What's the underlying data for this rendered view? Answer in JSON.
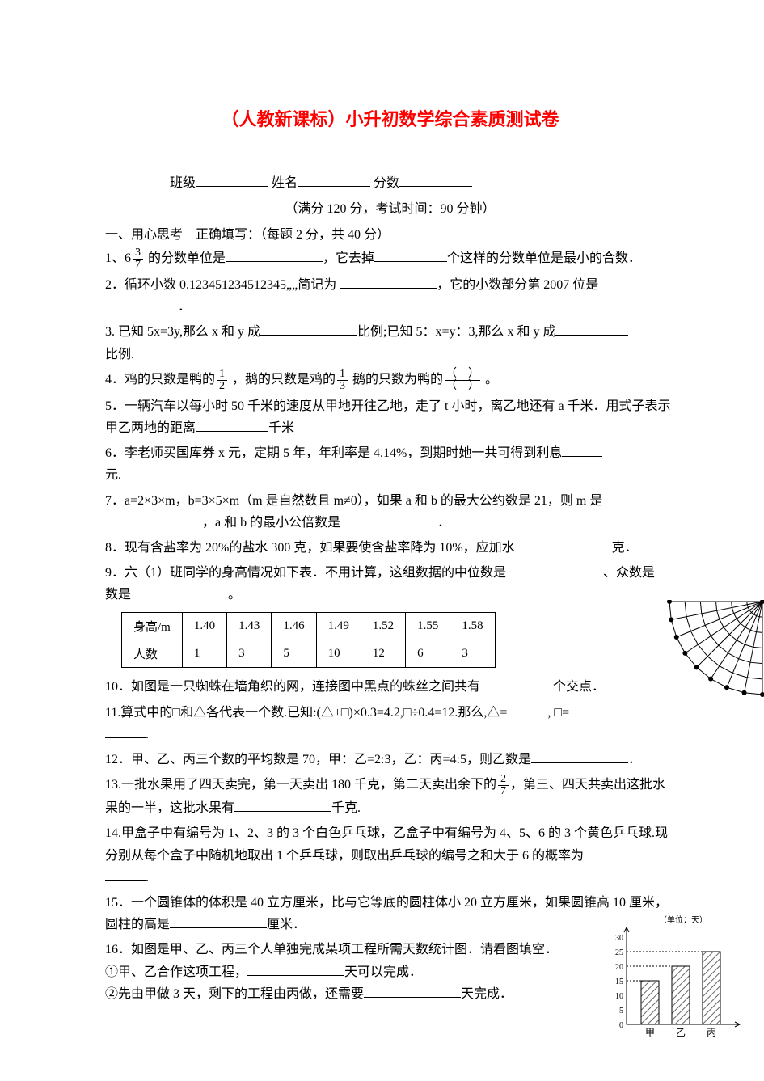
{
  "title": "（人教新课标）小升初数学综合素质测试卷",
  "header": {
    "class_label": "班级",
    "name_label": "姓名",
    "score_label": "分数"
  },
  "subtitle": "（满分 120 分，考试时间：90 分钟）",
  "section1": "一、用心思考　正确填写：（每题 2 分，共 40 分）",
  "q1_a": "1、6",
  "q1_frac_num": "3",
  "q1_frac_den": "7",
  "q1_b": " 的分数单位是",
  "q1_c": "，它去掉",
  "q1_d": "个这样的分数单位是最小的合数．",
  "q2_a": "2．循环小数 0.123451234512345„„简记为 ",
  "q2_b": "，它的小数部分第 2007 位是",
  "q2_c": "．",
  "q3_a": "3. 已知 5x=3y,那么 x 和 y 成",
  "q3_b": "比例;已知 5：x=y：3,那么 x 和 y 成",
  "q3_c": "比例.",
  "q4_a": "4．鸡的只数是鸭的",
  "q4_f1_num": "1",
  "q4_f1_den": "2",
  "q4_b": " ，鹅的只数是鸡的",
  "q4_f2_num": "1",
  "q4_f2_den": "3",
  "q4_c": " 鹅的只数为鸭的",
  "q4_f3_num": "（　）",
  "q4_f3_den": "（　）",
  "q4_d": " 。",
  "q5_a": "5．一辆汽车以每小时 50 千米的速度从甲地开往乙地，走了 t 小时，离乙地还有 a 千米．用式子表示甲乙两地的距离",
  "q5_b": "千米",
  "q6_a": "6．李老师买国库券 x 元，定期 5 年，年利率是 4.14%，到期时她一共可得到利息",
  "q6_b": "元.",
  "q7_a": "7．a=2×3×m，b=3×5×m（m 是自然数且 m≠0），如果 a 和 b 的最大公约数是 21，则 m 是",
  "q7_b": "，a 和 b 的最小公倍数是",
  "q7_c": "．",
  "q8_a": "8．现有含盐率为 20%的盐水 300 克，如果要使含盐率降为 10%，应加水",
  "q8_b": "克．",
  "q9_a": "9．六（1）班同学的身高情况如下表．不用计算，这组数据的中位数是",
  "q9_b": "、众数是",
  "q9_c": "。",
  "table": {
    "headers": [
      "身高/m",
      "1.40",
      "1.43",
      "1.46",
      "1.49",
      "1.52",
      "1.55",
      "1.58"
    ],
    "row2_label": "人数",
    "row2": [
      "1",
      "3",
      "5",
      "10",
      "12",
      "6",
      "3"
    ]
  },
  "q10_a": "10．如图是一只蜘蛛在墙角织的网，连接图中黑点的蛛丝之间共有",
  "q10_b": "个交点．",
  "q11_a": "11.算式中的□和△各代表一个数.已知:(△+□)×0.3=4.2,□÷0.4=12.那么,△=",
  "q11_b": ", □=",
  "q11_c": ".",
  "q12_a": "12．甲、乙、丙三个数的平均数是 70，甲：乙=2:3，乙：丙=4:5，则乙数是",
  "q12_b": "．",
  "q13_a": "13.一批水果用了四天卖完，第一天卖出 180 千克，第二天卖出余下的",
  "q13_frac_num": "2",
  "q13_frac_den": "7",
  "q13_b": "，第三、四天共卖出这批水果的一半，这批水果有",
  "q13_c": "千克.",
  "q14_a": "14.甲盒子中有编号为 1、2、3 的 3 个白色乒乓球，乙盒子中有编号为 4、5、6 的 3 个黄色乒乓球.现分别从每个盒子中随机地取出 1 个乒乓球，则取出乒乓球的编号之和大于 6 的概率为",
  "q14_b": ".",
  "q15_a": "15．一个圆锥体的体积是 40 立方厘米，比与它等底的圆柱体小 20 立方厘米，如果圆锥高 10 厘米，圆柱的高是",
  "q15_b": "厘米．",
  "q16_a": "16．如图是甲、乙、丙三个人单独完成某项工程所需天数统计图．请看图填空．",
  "q16_1a": "①甲、乙合作这项工程，",
  "q16_1b": "天可以完成．",
  "q16_2a": "②先由甲做 3 天，剩下的工程由丙做，还需要",
  "q16_2b": "天完成．",
  "chart": {
    "unit_label": "（单位：天）",
    "y_ticks": [
      "30",
      "25",
      "20",
      "15",
      "10",
      "5",
      "0"
    ],
    "x_labels": [
      "甲",
      "乙",
      "丙"
    ],
    "bar_values": [
      15,
      20,
      25
    ],
    "y_max": 30,
    "bar_color": "#808080",
    "hatch": true,
    "axis_color": "#000000",
    "bg": "#ffffff"
  },
  "web": {
    "n_radial": 9,
    "n_rings": 6,
    "dot_color": "#000000",
    "line_color": "#000000"
  }
}
